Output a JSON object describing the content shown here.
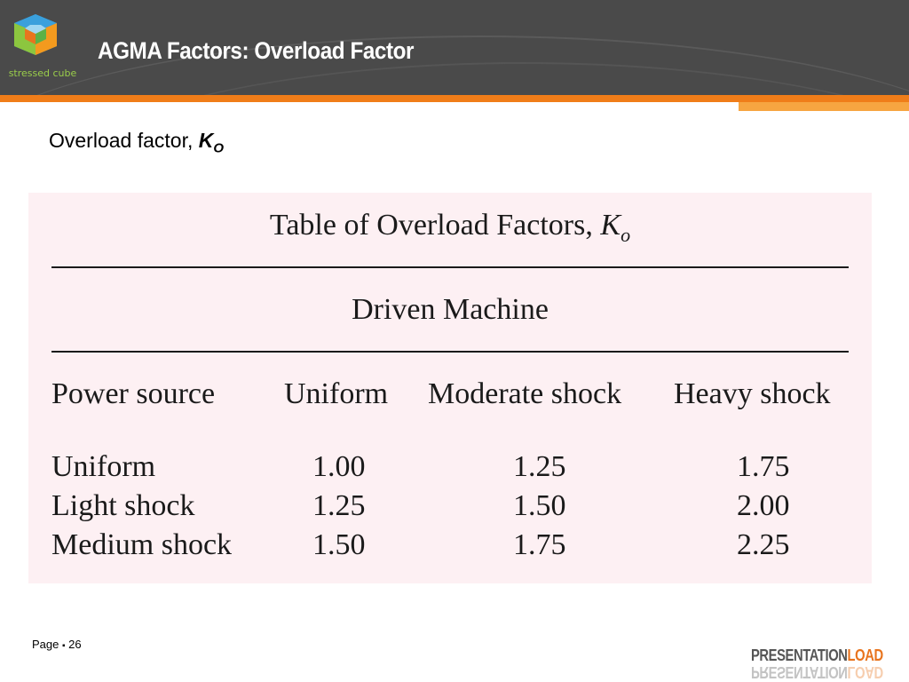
{
  "header": {
    "title": "AGMA Factors: Overload Factor",
    "logo_text": "stressed cube"
  },
  "subtitle": {
    "text": "Overload factor, ",
    "symbol": "K",
    "subscript": "O"
  },
  "table": {
    "title": "Table of Overload Factors, ",
    "title_symbol": "K",
    "title_subscript": "o",
    "group_header": "Driven Machine",
    "columns": [
      "Power source",
      "Uniform",
      "Moderate shock",
      "Heavy shock"
    ],
    "rows": [
      {
        "source": "Uniform",
        "values": [
          "1.00",
          "1.25",
          "1.75"
        ]
      },
      {
        "source": "Light shock",
        "values": [
          "1.25",
          "1.50",
          "2.00"
        ]
      },
      {
        "source": "Medium shock",
        "values": [
          "1.50",
          "1.75",
          "2.25"
        ]
      }
    ]
  },
  "footer": {
    "page_label": "Page",
    "separator": "▪",
    "page_number": "26",
    "brand_part1": "PRESENTATION",
    "brand_part2": "LOAD"
  },
  "colors": {
    "header_bg": "#4a4a4a",
    "accent": "#f07d19",
    "table_bg": "#fdf0f3"
  }
}
